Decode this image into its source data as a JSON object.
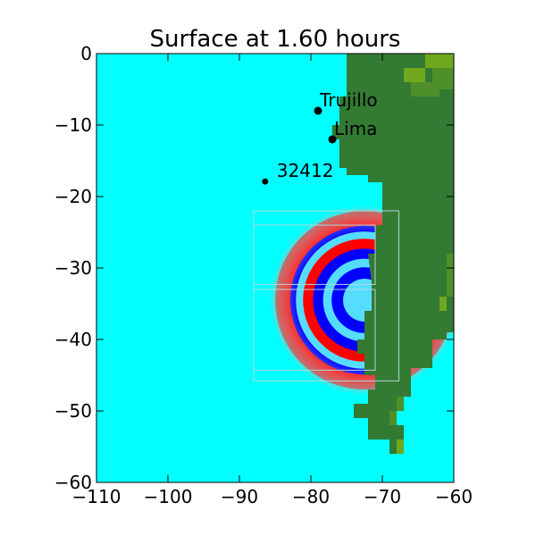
{
  "chart_data": {
    "type": "heatmap",
    "title": "Surface at 1.60 hours",
    "xlabel": "",
    "ylabel": "",
    "xlim": [
      -110,
      -60
    ],
    "ylim": [
      -60,
      0
    ],
    "xticks": [
      -110,
      -100,
      -90,
      -80,
      -70,
      -60
    ],
    "yticks": [
      0,
      -10,
      -20,
      -30,
      -40,
      -50,
      -60
    ],
    "xtick_labels": [
      "−110",
      "−100",
      "−90",
      "−80",
      "−70",
      "−60"
    ],
    "ytick_labels": [
      "0",
      "−10",
      "−20",
      "−30",
      "−40",
      "−50",
      "−60"
    ],
    "grid": false,
    "colors": {
      "water": "#00ffff",
      "land": "#337a33",
      "land_high": "#6fa81e",
      "land_mid": "#4f8f2a",
      "wave_positive": "#ff0000",
      "wave_negative": "#0000ff",
      "wave_light": "#55ddff",
      "grid_box": "#b0d8d8"
    },
    "markers": [
      {
        "label": "Trujillo",
        "lon": -79,
        "lat": -8
      },
      {
        "label": "Lima",
        "lon": -77,
        "lat": -12
      },
      {
        "label": "32412",
        "lon": -86.4,
        "lat": -17.9
      }
    ],
    "coastline": [
      [
        -75,
        0
      ],
      [
        -75,
        -3
      ],
      [
        -75,
        -6
      ],
      [
        -76,
        -6
      ],
      [
        -76,
        -10
      ],
      [
        -77,
        -10
      ],
      [
        -77,
        -12
      ],
      [
        -76,
        -12
      ],
      [
        -76,
        -16
      ],
      [
        -75,
        -16
      ],
      [
        -75,
        -17
      ],
      [
        -72,
        -17
      ],
      [
        -72,
        -18
      ],
      [
        -70,
        -18
      ],
      [
        -70,
        -24
      ],
      [
        -71,
        -24
      ],
      [
        -71,
        -28
      ],
      [
        -72,
        -28
      ],
      [
        -71.5,
        -32
      ],
      [
        -71.5,
        -36
      ],
      [
        -72.5,
        -36
      ],
      [
        -72.5,
        -40
      ],
      [
        -73.5,
        -40
      ],
      [
        -73.5,
        -42
      ],
      [
        -72.5,
        -42
      ],
      [
        -72.5,
        -45
      ],
      [
        -71,
        -45
      ],
      [
        -71,
        -47
      ],
      [
        -72,
        -47
      ],
      [
        -72,
        -49
      ],
      [
        -74,
        -49
      ],
      [
        -74,
        -51
      ],
      [
        -72,
        -51
      ],
      [
        -72,
        -54
      ],
      [
        -69,
        -54
      ],
      [
        -69,
        -56
      ],
      [
        -67,
        -56
      ],
      [
        -67,
        -52
      ],
      [
        -68,
        -52
      ],
      [
        -68,
        -48
      ],
      [
        -66,
        -48
      ],
      [
        -66,
        -44
      ],
      [
        -63,
        -44
      ],
      [
        -63,
        -40
      ],
      [
        -61,
        -40
      ],
      [
        -61,
        -39
      ],
      [
        -60,
        -39
      ],
      [
        -60,
        0
      ]
    ],
    "highland_cells": [
      [
        -64,
        0,
        -60,
        -2
      ],
      [
        -62,
        -2,
        -60,
        -5
      ],
      [
        -63,
        -2,
        -62,
        -4
      ],
      [
        -67,
        -2,
        -64,
        -4
      ],
      [
        -66,
        -4,
        -62,
        -6
      ],
      [
        -61,
        -28,
        -60,
        -34
      ],
      [
        -62,
        -34,
        -61,
        -36
      ],
      [
        -68,
        -48,
        -67,
        -50
      ],
      [
        -69,
        -50,
        -68,
        -52
      ],
      [
        -68,
        -54,
        -67,
        -56
      ]
    ],
    "wave_center": {
      "lon": -72.5,
      "lat": -34.5
    },
    "wave_bands": [
      {
        "r": 12.5,
        "color": "wave_positive"
      },
      {
        "r": 10.4,
        "color": "wave_negative"
      },
      {
        "r": 9.6,
        "color": "wave_light"
      },
      {
        "r": 8.6,
        "color": "wave_positive"
      },
      {
        "r": 7.2,
        "color": "wave_negative"
      },
      {
        "r": 5.8,
        "color": "wave_light"
      },
      {
        "r": 4.6,
        "color": "wave_negative"
      },
      {
        "r": 3.0,
        "color": "wave_light"
      }
    ],
    "grid_boxes": [
      {
        "x0": -88,
        "x1": -67.7,
        "y0": -22,
        "y1": -45.8
      },
      {
        "x0": -88,
        "x1": -71,
        "y0": -24,
        "y1": -32.3
      },
      {
        "x0": -88,
        "x1": -71,
        "y0": -33,
        "y1": -44.3
      }
    ]
  }
}
